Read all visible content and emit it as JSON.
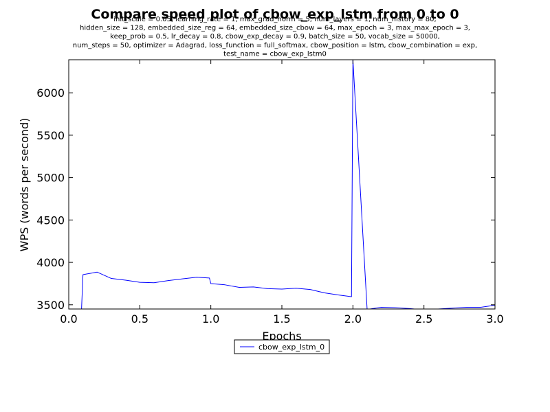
{
  "chart_data": {
    "type": "line",
    "title": "Compare speed plot of cbow_exp_lstm from 0 to 0",
    "subtitle_lines": [
      "init_scale = 0.05, learning_rate = 1, max_grad_norm = 5, num_layers = 1, num_history = 80,",
      "hidden_size = 128, embedded_size_reg = 64, embedded_size_cbow = 64, max_epoch = 3, max_max_epoch = 3,",
      "keep_prob = 0.5, lr_decay = 0.8, cbow_exp_decay = 0.9, batch_size = 50, vocab_size = 50000,",
      "num_steps = 50, optimizer = Adagrad, loss_function = full_softmax, cbow_position = lstm, cbow_combination = exp,",
      "test_name = cbow_exp_lstm0"
    ],
    "xlabel": "Epochs",
    "ylabel": "WPS (words per second)",
    "xlim": [
      0.0,
      3.0
    ],
    "ylim": [
      3450,
      6390
    ],
    "xticks": [
      0.0,
      0.5,
      1.0,
      1.5,
      2.0,
      2.5,
      3.0
    ],
    "xtick_labels": [
      "0.0",
      "0.5",
      "1.0",
      "1.5",
      "2.0",
      "2.5",
      "3.0"
    ],
    "yticks": [
      3500,
      4000,
      4500,
      5000,
      5500,
      6000
    ],
    "ytick_labels": [
      "3500",
      "4000",
      "4500",
      "5000",
      "5500",
      "6000"
    ],
    "grid": false,
    "legend_position": "below-center",
    "series": [
      {
        "name": "cbow_exp_lstm_0",
        "color": "#0000ff",
        "x": [
          0.09,
          0.1,
          0.2,
          0.3,
          0.4,
          0.5,
          0.6,
          0.7,
          0.8,
          0.9,
          0.99,
          1.0,
          1.1,
          1.2,
          1.3,
          1.4,
          1.5,
          1.6,
          1.7,
          1.8,
          1.9,
          1.99,
          2.0,
          2.1,
          2.2,
          2.3,
          2.4,
          2.5,
          2.6,
          2.7,
          2.8,
          2.9,
          3.0
        ],
        "y": [
          3450,
          3855,
          3885,
          3810,
          3790,
          3765,
          3760,
          3785,
          3805,
          3825,
          3815,
          3750,
          3735,
          3705,
          3710,
          3690,
          3685,
          3695,
          3680,
          3640,
          3615,
          3595,
          6390,
          3445,
          3470,
          3465,
          3455,
          3440,
          3450,
          3460,
          3470,
          3470,
          3495
        ]
      }
    ]
  }
}
